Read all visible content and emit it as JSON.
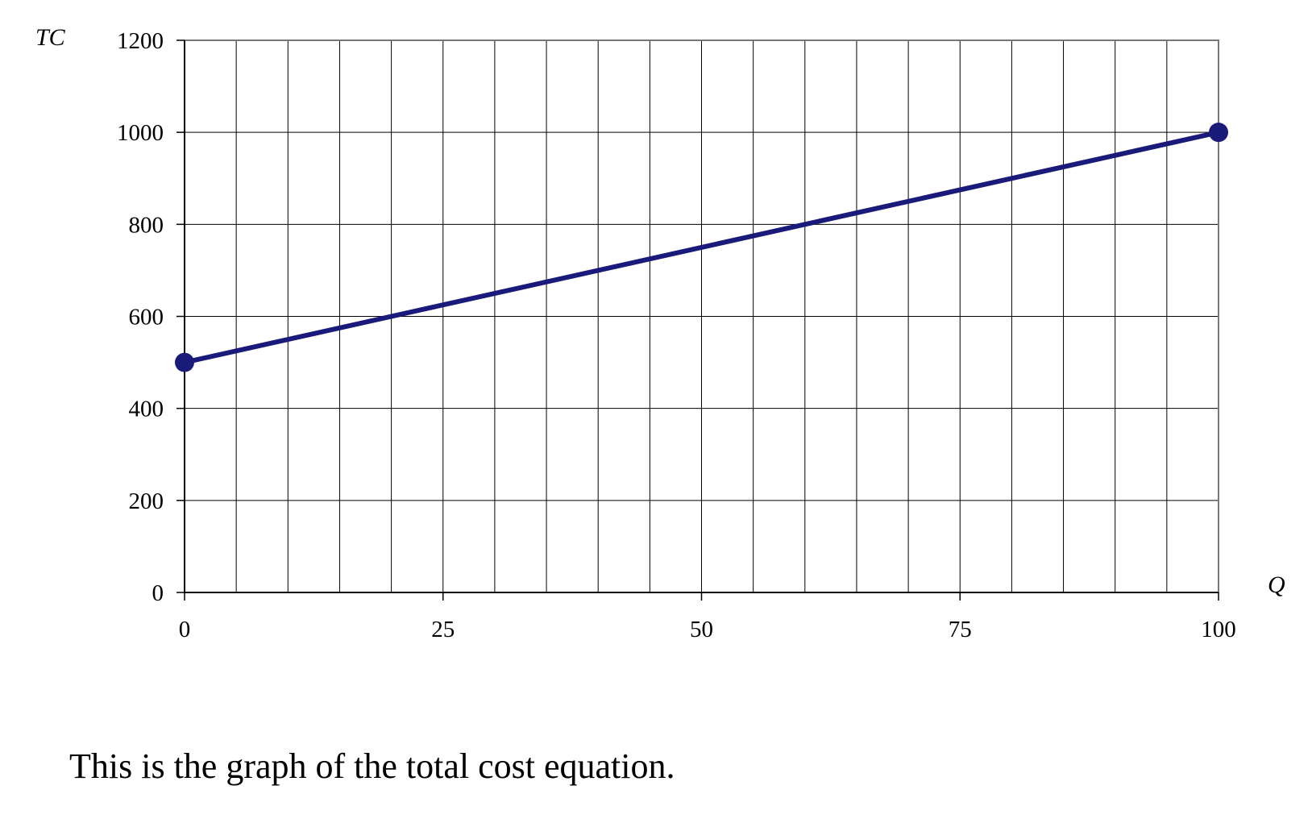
{
  "chart_data": {
    "type": "line",
    "xlabel": "Q",
    "ylabel": "TC",
    "xlim": [
      0,
      100
    ],
    "ylim": [
      0,
      1200
    ],
    "x_ticks": [
      0,
      25,
      50,
      75,
      100
    ],
    "y_ticks": [
      0,
      200,
      400,
      600,
      800,
      1000,
      1200
    ],
    "grid": true,
    "series": [
      {
        "x": [
          0,
          100
        ],
        "y": [
          500,
          1000
        ],
        "color": "#1a1a7a",
        "markers": true
      }
    ]
  },
  "caption": "This is the graph of the total cost equation."
}
